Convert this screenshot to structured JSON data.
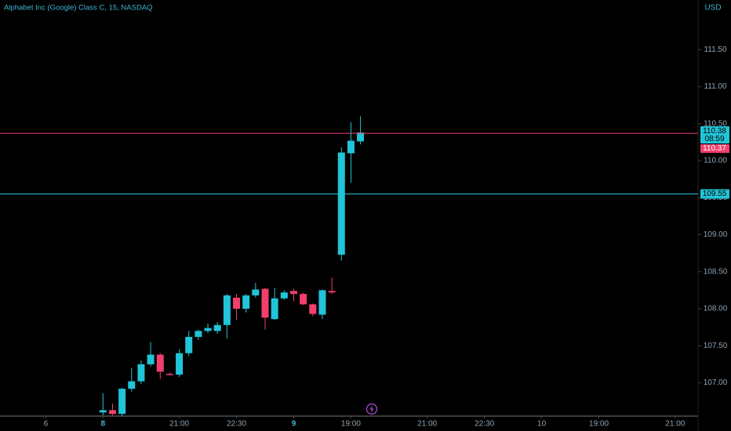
{
  "chart_data": {
    "type": "candlestick",
    "title": "Alphabet Inc (Google) Class C, 15, NASDAQ",
    "currency": "USD",
    "up_color": "#22c4d8",
    "down_color": "#f23f6e",
    "x": [
      0,
      1,
      2,
      3,
      4,
      5,
      6,
      7,
      8,
      9,
      10,
      11,
      12,
      13,
      14,
      15,
      16,
      17,
      18,
      19,
      20,
      21,
      22,
      23,
      24,
      25,
      26,
      27
    ],
    "open": [
      106.6,
      106.63,
      106.58,
      106.92,
      107.02,
      107.25,
      107.38,
      107.12,
      107.11,
      107.4,
      107.62,
      107.7,
      107.7,
      107.78,
      108.15,
      108.0,
      108.18,
      108.27,
      107.86,
      108.14,
      108.24,
      108.2,
      108.06,
      107.92,
      108.24,
      108.73,
      110.1,
      110.26
    ],
    "high": [
      106.86,
      106.72,
      106.93,
      107.2,
      107.3,
      107.55,
      107.4,
      107.14,
      107.45,
      107.7,
      107.72,
      107.8,
      107.82,
      108.2,
      108.2,
      108.2,
      108.35,
      108.28,
      108.28,
      108.25,
      108.27,
      108.22,
      108.07,
      108.26,
      108.42,
      110.18,
      110.52,
      110.6
    ],
    "low": [
      106.56,
      106.56,
      106.55,
      106.88,
      106.98,
      107.22,
      107.05,
      107.1,
      107.08,
      107.36,
      107.58,
      107.67,
      107.66,
      107.6,
      107.85,
      107.95,
      108.15,
      107.72,
      107.85,
      108.12,
      108.1,
      108.05,
      107.9,
      107.86,
      108.2,
      108.65,
      109.7,
      110.22
    ],
    "close": [
      106.63,
      106.58,
      106.92,
      107.02,
      107.25,
      107.38,
      107.15,
      107.11,
      107.4,
      107.62,
      107.7,
      107.74,
      107.78,
      108.18,
      108.0,
      108.18,
      108.26,
      107.88,
      108.14,
      108.22,
      108.2,
      108.06,
      107.93,
      108.25,
      108.22,
      110.11,
      110.27,
      110.38
    ],
    "xlim": [
      -10.8,
      62.4
    ],
    "xticks": [
      {
        "value": -6,
        "label": "6"
      },
      {
        "value": 0,
        "label": "8",
        "bold": true
      },
      {
        "value": 8,
        "label": "21:00"
      },
      {
        "value": 14,
        "label": "22:30"
      },
      {
        "value": 20,
        "label": "9",
        "bold": true
      },
      {
        "value": 26,
        "label": "19:00"
      },
      {
        "value": 34,
        "label": "21:00"
      },
      {
        "value": 40,
        "label": "22:30"
      },
      {
        "value": 46,
        "label": "10"
      },
      {
        "value": 52,
        "label": "19:00"
      },
      {
        "value": 60,
        "label": "21:00"
      }
    ],
    "ylim": [
      106.55,
      112.17
    ],
    "yticks": [
      {
        "value": 107,
        "label": "107.00"
      },
      {
        "value": 107.5,
        "label": "107.50"
      },
      {
        "value": 108,
        "label": "108.00"
      },
      {
        "value": 108.5,
        "label": "108.50"
      },
      {
        "value": 109,
        "label": "109.00"
      },
      {
        "value": 109.5,
        "label": "109.50"
      },
      {
        "value": 110,
        "label": "110.00"
      },
      {
        "value": 110.5,
        "label": "110.50"
      },
      {
        "value": 111,
        "label": "111.00"
      },
      {
        "value": 111.5,
        "label": "111.50"
      }
    ],
    "last_price": 110.38,
    "countdown": "08:59",
    "hlines": [
      {
        "value": 110.37,
        "color": "#f23f6e"
      },
      {
        "value": 109.55,
        "color": "#22c4d8"
      }
    ]
  }
}
